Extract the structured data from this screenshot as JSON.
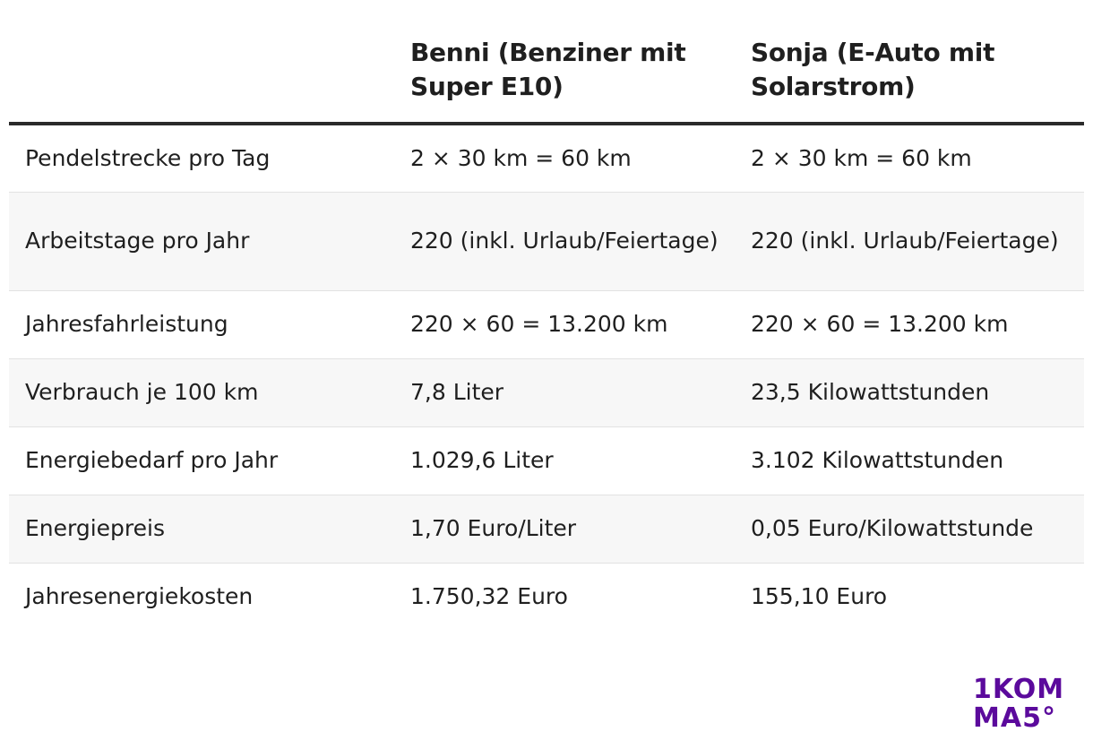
{
  "table": {
    "headers": [
      "",
      "Benni (Benziner mit Super E10)",
      "Sonja (E-Auto mit Solarstrom)"
    ],
    "rows": [
      [
        "Pendelstrecke pro Tag",
        "2 × 30 km = 60 km",
        "2 × 30 km = 60 km"
      ],
      [
        "Arbeitstage pro Jahr",
        "220 (inkl. Urlaub/Feiertage)",
        "220 (inkl. Urlaub/Feiertage)"
      ],
      [
        "Jahresfahrleistung",
        "220 × 60 = 13.200 km",
        "220 × 60 = 13.200 km"
      ],
      [
        "Verbrauch je 100 km",
        "7,8 Liter",
        "23,5 Kilowattstunden"
      ],
      [
        "Energiebedarf pro Jahr",
        "1.029,6 Liter",
        "3.102 Kilowattstunden"
      ],
      [
        "Energiepreis",
        "1,70 Euro/Liter",
        "0,05 Euro/Kilowattstunde"
      ],
      [
        "Jahresenergiekosten",
        "1.750,32 Euro",
        "155,10 Euro"
      ]
    ]
  },
  "logo": {
    "line1": "1KOM",
    "line2": "MA5°",
    "color": "#5b0a9c"
  }
}
